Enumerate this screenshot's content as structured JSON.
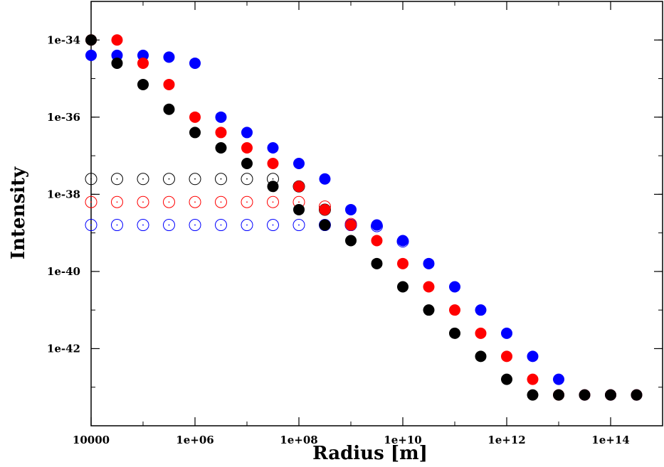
{
  "chart_data": {
    "type": "scatter",
    "title": "",
    "xlabel": "Radius [m]",
    "ylabel": "Intensity",
    "xscale": "log",
    "yscale": "log",
    "xlim": [
      10000.0,
      1000000000000000.0
    ],
    "ylim": [
      1e-44,
      1e-33
    ],
    "grid": false,
    "legend": "none",
    "x_ticks": [
      {
        "value": 10000.0,
        "label": "10000"
      },
      {
        "value": 1000000.0,
        "label": "1e+06"
      },
      {
        "value": 100000000.0,
        "label": "1e+08"
      },
      {
        "value": 10000000000.0,
        "label": "1e+10"
      },
      {
        "value": 1000000000000.0,
        "label": "1e+12"
      },
      {
        "value": 100000000000000.0,
        "label": "1e+14"
      }
    ],
    "y_ticks": [
      {
        "value": 1e-34,
        "label": "1e-34"
      },
      {
        "value": 1e-36,
        "label": "1e-36"
      },
      {
        "value": 1e-38,
        "label": "1e-38"
      },
      {
        "value": 1e-40,
        "label": "1e-40"
      },
      {
        "value": 1e-42,
        "label": "1e-42"
      }
    ],
    "series": [
      {
        "color": "#0000ff",
        "marker": "filled-circle",
        "x": [
          10000.0,
          31600.0,
          100000.0,
          316000.0,
          1000000.0,
          3160000.0,
          10000000.0,
          31600000.0,
          100000000.0,
          316000000.0,
          1000000000.0,
          3160000000.0,
          10000000000.0,
          31600000000.0,
          100000000000.0,
          316000000000.0,
          1000000000000.0,
          3160000000000.0,
          10000000000000.0,
          31600000000000.0,
          100000000000000.0,
          316000000000000.0
        ],
        "y": [
          4e-35,
          4e-35,
          4e-35,
          3.6e-35,
          2.5e-35,
          1e-36,
          4e-37,
          1.6e-37,
          6.3e-38,
          2.5e-38,
          4e-39,
          1.6e-39,
          6.3e-40,
          1.6e-40,
          4e-41,
          1e-41,
          2.5e-42,
          6.3e-43,
          1.6e-43,
          6.3e-44,
          6.3e-44,
          6.3e-44
        ]
      },
      {
        "color": "#ff0000",
        "marker": "filled-circle",
        "x": [
          10000.0,
          31600.0,
          100000.0,
          316000.0,
          1000000.0,
          3160000.0,
          10000000.0,
          31600000.0,
          100000000.0,
          316000000.0,
          1000000000.0,
          3160000000.0,
          10000000000.0,
          31600000000.0,
          100000000000.0,
          316000000000.0,
          1000000000000.0,
          3160000000000.0,
          10000000000000.0,
          31600000000000.0,
          100000000000000.0,
          316000000000000.0
        ],
        "y": [
          1e-34,
          1e-34,
          2.5e-35,
          7e-36,
          1e-36,
          4e-37,
          1.6e-37,
          6.3e-38,
          1.6e-38,
          4e-39,
          1.6e-39,
          6.3e-40,
          1.6e-40,
          4e-41,
          1e-41,
          2.5e-42,
          6.3e-43,
          1.6e-43,
          6.3e-44,
          6.3e-44,
          6.3e-44,
          6.3e-44
        ]
      },
      {
        "color": "#000000",
        "marker": "filled-circle",
        "x": [
          10000.0,
          31600.0,
          100000.0,
          316000.0,
          1000000.0,
          3160000.0,
          10000000.0,
          31600000.0,
          100000000.0,
          316000000.0,
          1000000000.0,
          3160000000.0,
          10000000000.0,
          31600000000.0,
          100000000000.0,
          316000000000.0,
          1000000000000.0,
          3160000000000.0,
          10000000000000.0,
          31600000000000.0,
          100000000000000.0,
          316000000000000.0
        ],
        "y": [
          1e-34,
          2.5e-35,
          7e-36,
          1.6e-36,
          4e-37,
          1.6e-37,
          6.3e-38,
          1.6e-38,
          4e-39,
          1.6e-39,
          6.3e-40,
          1.6e-40,
          4e-41,
          1e-41,
          2.5e-42,
          6.3e-43,
          1.6e-43,
          6.3e-44,
          6.3e-44,
          6.3e-44,
          6.3e-44,
          6.3e-44
        ]
      },
      {
        "color": "#000000",
        "marker": "open-circle-dot",
        "x": [
          10000.0,
          31600.0,
          100000.0,
          316000.0,
          1000000.0,
          3160000.0,
          10000000.0,
          31600000.0,
          100000000.0,
          316000000.0,
          1000000000.0
        ],
        "y": [
          2.5e-38,
          2.5e-38,
          2.5e-38,
          2.5e-38,
          2.5e-38,
          2.5e-38,
          2.5e-38,
          2.5e-38,
          1.6e-38,
          4e-39,
          1.6e-39
        ]
      },
      {
        "color": "#ff0000",
        "marker": "open-circle-dot",
        "x": [
          10000.0,
          31600.0,
          100000.0,
          316000.0,
          1000000.0,
          3160000.0,
          10000000.0,
          31600000.0,
          100000000.0,
          316000000.0,
          1000000000.0
        ],
        "y": [
          6.3e-39,
          6.3e-39,
          6.3e-39,
          6.3e-39,
          6.3e-39,
          6.3e-39,
          6.3e-39,
          6.3e-39,
          6.3e-39,
          4.8e-39,
          1.7e-39
        ]
      },
      {
        "color": "#0000ff",
        "marker": "open-circle-dot",
        "x": [
          10000.0,
          31600.0,
          100000.0,
          316000.0,
          1000000.0,
          3160000.0,
          10000000.0,
          31600000.0,
          100000000.0,
          316000000.0,
          1000000000.0,
          3160000000.0,
          10000000000.0
        ],
        "y": [
          1.6e-39,
          1.6e-39,
          1.6e-39,
          1.6e-39,
          1.6e-39,
          1.6e-39,
          1.6e-39,
          1.6e-39,
          1.6e-39,
          1.6e-39,
          1.6e-39,
          1.5e-39,
          6e-40
        ]
      }
    ]
  }
}
